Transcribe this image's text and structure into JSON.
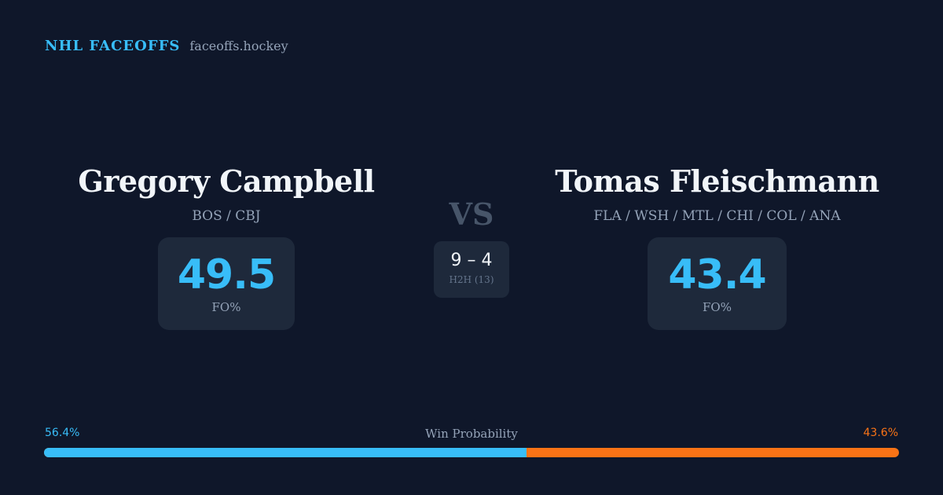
{
  "brand": {
    "name": "NHL FACEOFFS",
    "domain": "faceoffs.hockey"
  },
  "player_left": {
    "name": "Gregory Campbell",
    "teams": "BOS / CBJ",
    "fo_value": "49.5",
    "fo_label": "FO%"
  },
  "player_right": {
    "name": "Tomas Fleischmann",
    "teams": "FLA / WSH / MTL / CHI / COL / ANA",
    "fo_value": "43.4",
    "fo_label": "FO%"
  },
  "versus": {
    "label": "VS",
    "h2h_score": "9 – 4",
    "h2h_label": "H2H (13)"
  },
  "win_probability": {
    "title": "Win Probability",
    "left_label": "56.4%",
    "right_label": "43.6%",
    "left_value": 56.4,
    "right_value": 43.6
  },
  "colors": {
    "background": "#0f172a",
    "accent_blue": "#38bdf8",
    "accent_orange": "#f97316",
    "card": "#1e293b"
  }
}
